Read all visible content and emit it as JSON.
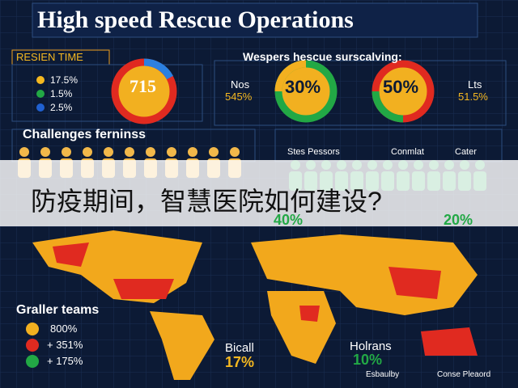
{
  "header": {
    "title": "High speed Rescue Operations"
  },
  "response": {
    "label": "RESIEN TIME",
    "legend": [
      "17.5%",
      "1.5%",
      "2.5%"
    ],
    "center": "715"
  },
  "rescue": {
    "title": "Wespers hescue surscalving:",
    "left_label": "Nos",
    "left_value": "545%",
    "donut_a": "30%",
    "donut_b": "50%",
    "right_label": "Lts",
    "right_value": "51.5%"
  },
  "challenges": {
    "title": "Challenges ferninss",
    "icons": [
      "Stes Pessors",
      "Conmlat",
      "Cater"
    ],
    "left_pct": "40%",
    "right_pct": "20%"
  },
  "banner": {
    "text": "防疫期间，智慧医院如何建设?"
  },
  "teams": {
    "title": "Graller teams",
    "items": [
      "800%",
      "+ 351%",
      "+ 175%"
    ]
  },
  "regions": [
    {
      "label": "Bicall",
      "value": "17%"
    },
    {
      "label": "Holrans",
      "value": "10%"
    }
  ],
  "footer": [
    "Esbaulby",
    "Conse Pleaord"
  ]
}
